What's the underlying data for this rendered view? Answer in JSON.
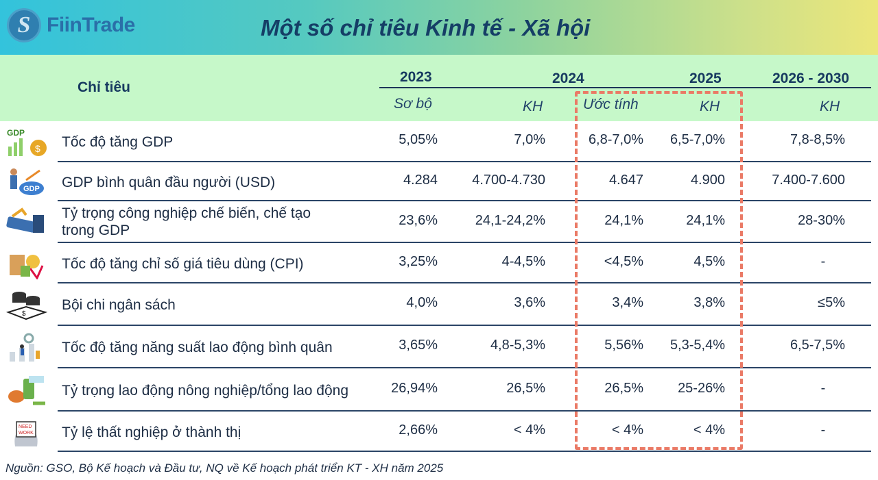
{
  "brand": "FiinTrade",
  "title": "Một số chỉ tiêu Kinh tế - Xã hội",
  "header": {
    "indicator": "Chỉ tiêu",
    "y2023": "2023",
    "y2024": "2024",
    "y2025": "2025",
    "y2030": "2026 - 2030",
    "sub_2023": "Sơ bộ",
    "sub_2024_kh": "KH",
    "sub_2024_est": "Ước tính",
    "sub_2025": "KH",
    "sub_2030": "KH"
  },
  "rows": [
    {
      "label": "Tốc độ tăng GDP",
      "v2023": "5,05%",
      "v2024kh": "7,0%",
      "v2024est": "6,8-7,0%",
      "v2025": "6,5-7,0%",
      "v2030": "7,8-8,5%",
      "icon": "gdp-growth-icon"
    },
    {
      "label": "GDP bình quân đầu người (USD)",
      "v2023": "4.284",
      "v2024kh": "4.700-4.730",
      "v2024est": "4.647",
      "v2025": "4.900",
      "v2030": "7.400-7.600",
      "icon": "gdp-per-capita-icon"
    },
    {
      "label": "Tỷ trọng công nghiệp chế biến, chế tạo trong GDP",
      "v2023": "23,6%",
      "v2024kh": "24,1-24,2%",
      "v2024est": "24,1%",
      "v2025": "24,1%",
      "v2030": "28-30%",
      "icon": "manufacturing-icon"
    },
    {
      "label": "Tốc độ tăng chỉ số giá tiêu dùng (CPI)",
      "v2023": "3,25%",
      "v2024kh": "4-4,5%",
      "v2024est": "<4,5%",
      "v2025": "4,5%",
      "v2030": "-",
      "icon": "cpi-icon"
    },
    {
      "label": "Bội chi ngân sách",
      "v2023": "4,0%",
      "v2024kh": "3,6%",
      "v2024est": "3,4%",
      "v2025": "3,8%",
      "v2030": "≤5%",
      "icon": "budget-icon"
    },
    {
      "label": "Tốc độ tăng năng suất lao động bình quân",
      "v2023": "3,65%",
      "v2024kh": "4,8-5,3%",
      "v2024est": "5,56%",
      "v2025": "5,3-5,4%",
      "v2030": "6,5-7,5%",
      "icon": "productivity-icon"
    },
    {
      "label": "Tỷ trọng lao động nông nghiệp/tổng lao động",
      "v2023": "26,94%",
      "v2024kh": "26,5%",
      "v2024est": "26,5%",
      "v2025": "25-26%",
      "v2030": "-",
      "icon": "agriculture-icon"
    },
    {
      "label": "Tỷ lệ thất nghiệp ở thành thị",
      "v2023": "2,66%",
      "v2024kh": "< 4%",
      "v2024est": "< 4%",
      "v2025": "< 4%",
      "v2030": "-",
      "icon": "need-work-icon",
      "icon_text": "NEED WORK"
    }
  ],
  "footer": "Nguồn: GSO, Bộ Kế hoạch và Đầu tư, NQ về Kế hoạch phát triển KT - XH năm 2025",
  "colors": {
    "header_band": "#c6f8c9",
    "highlight": "#ea7a66",
    "text": "#1b2f4e"
  }
}
